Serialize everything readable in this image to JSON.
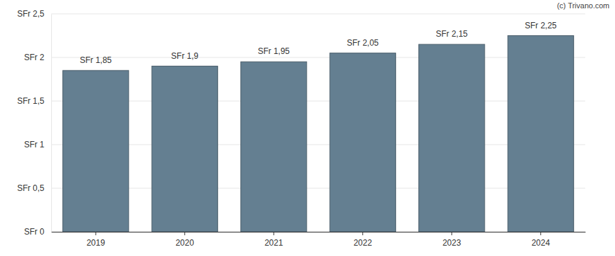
{
  "chart_data": {
    "type": "bar",
    "annotations": [
      "(c) Trivano.com"
    ],
    "categories": [
      "2019",
      "2020",
      "2021",
      "2022",
      "2023",
      "2024"
    ],
    "values": [
      1.85,
      1.9,
      1.95,
      2.05,
      2.15,
      2.25
    ],
    "value_labels": [
      "SFr 1,85",
      "SFr 1,9",
      "SFr 1,95",
      "SFr 2,05",
      "SFr 2,15",
      "SFr 2,25"
    ],
    "color": "#647f91",
    "ylim": [
      0,
      2.5
    ],
    "yticks": [
      {
        "value": 0,
        "label": "SFr 0"
      },
      {
        "value": 0.5,
        "label": "SFr 0,5"
      },
      {
        "value": 1,
        "label": "SFr 1"
      },
      {
        "value": 1.5,
        "label": "SFr 1,5"
      },
      {
        "value": 2,
        "label": "SFr 2"
      },
      {
        "value": 2.5,
        "label": "SFr 2,5"
      }
    ],
    "grid": true,
    "data_labels": true
  }
}
